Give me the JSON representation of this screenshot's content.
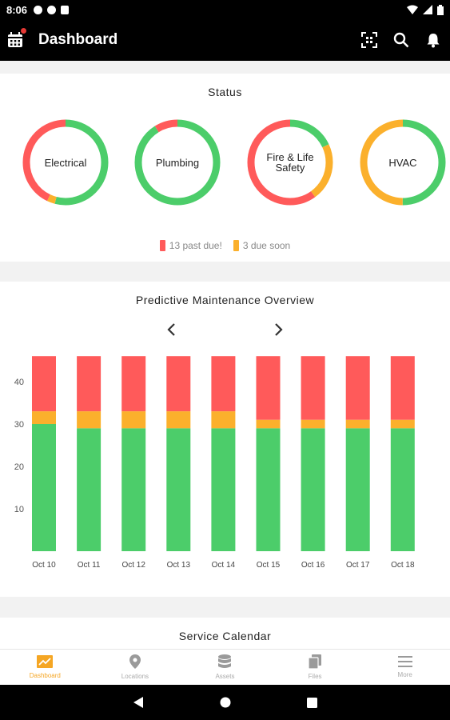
{
  "status_bar": {
    "time": "8:06"
  },
  "app_bar": {
    "title": "Dashboard"
  },
  "colors": {
    "red": "#ff5a5a",
    "orange": "#fbb02c",
    "green": "#4ccd6a",
    "accent": "#f5a623"
  },
  "status": {
    "title": "Status",
    "categories": [
      {
        "label": "Electrical",
        "red": 0.43,
        "orange": 0.03,
        "green": 0.54
      },
      {
        "label": "Plumbing",
        "red": 0.09,
        "orange": 0.0,
        "green": 0.91
      },
      {
        "label": "Fire & Life Safety",
        "red": 0.6,
        "orange": 0.22,
        "green": 0.18
      },
      {
        "label": "HVAC",
        "red": 0.0,
        "orange": 0.5,
        "green": 0.5
      }
    ],
    "legend": {
      "past_due": "13 past due!",
      "due_soon": "3 due soon"
    }
  },
  "predictive": {
    "title": "Predictive Maintenance Overview"
  },
  "chart_data": {
    "type": "bar",
    "stacked": true,
    "categories": [
      "Oct 10",
      "Oct 11",
      "Oct 12",
      "Oct 13",
      "Oct 14",
      "Oct 15",
      "Oct 16",
      "Oct 17",
      "Oct 18"
    ],
    "series": [
      {
        "color": "#4ccd6a",
        "values": [
          30,
          29,
          29,
          29,
          29,
          29,
          29,
          29,
          29
        ]
      },
      {
        "color": "#fbb02c",
        "values": [
          3,
          4,
          4,
          4,
          4,
          2,
          2,
          2,
          2
        ]
      },
      {
        "color": "#ff5a5a",
        "values": [
          13,
          13,
          13,
          13,
          13,
          15,
          15,
          15,
          15
        ]
      }
    ],
    "yticks": [
      10,
      20,
      30,
      40
    ],
    "ylim": [
      0,
      46
    ]
  },
  "calendar": {
    "title": "Service Calendar"
  },
  "bottom_nav": [
    {
      "label": "Dashboard",
      "icon": "trend-chart-icon",
      "active": true
    },
    {
      "label": "Locations",
      "icon": "location-pin-icon",
      "active": false
    },
    {
      "label": "Assets",
      "icon": "database-icon",
      "active": false
    },
    {
      "label": "Files",
      "icon": "files-icon",
      "active": false
    },
    {
      "label": "More",
      "icon": "menu-icon",
      "active": false
    }
  ]
}
